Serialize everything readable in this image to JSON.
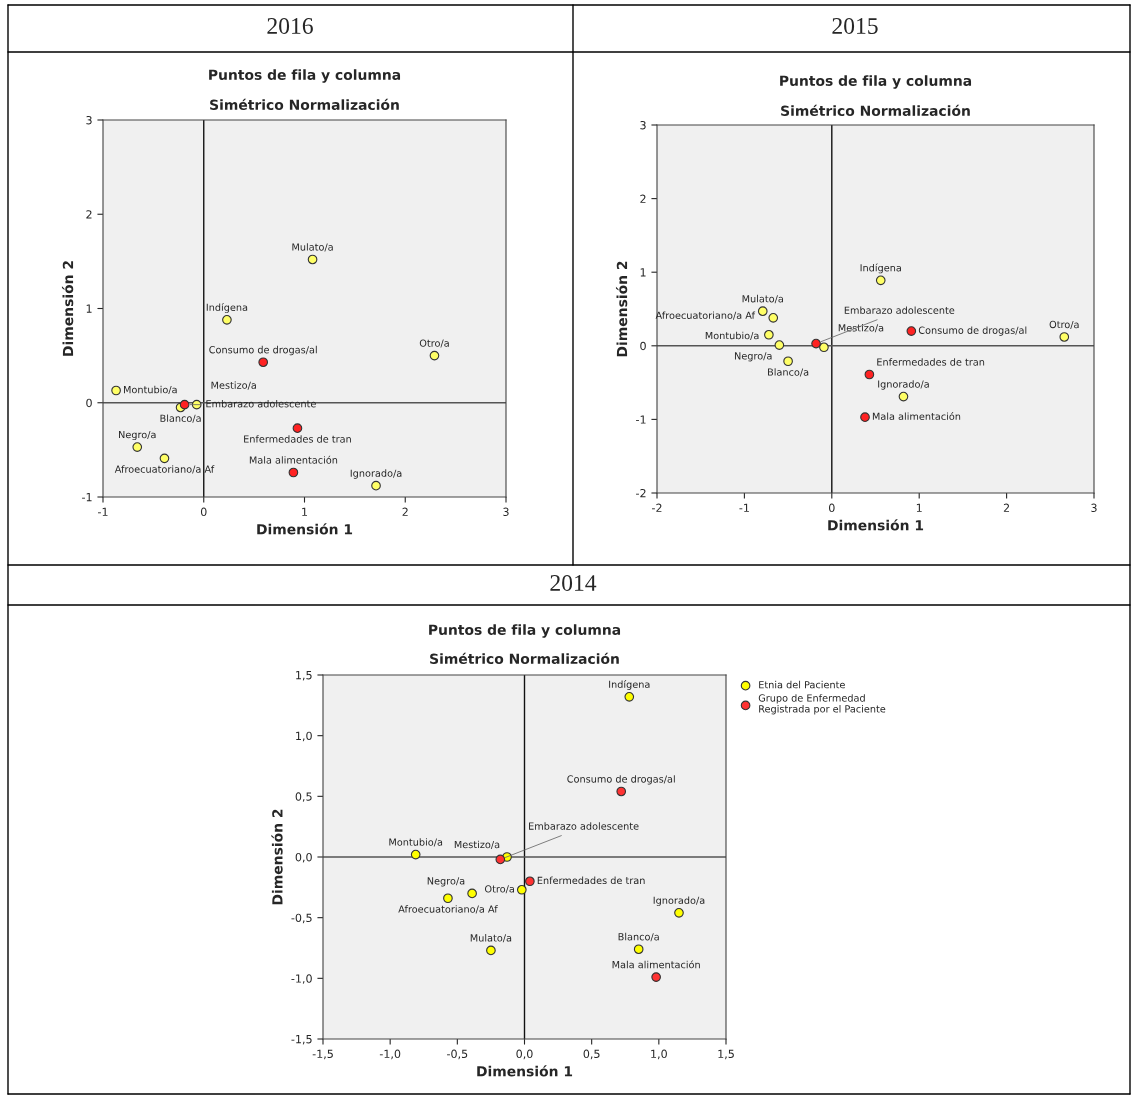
{
  "chart_data": [
    {
      "type": "scatter",
      "title": "2016",
      "subtitle": "Puntos de fila y columna",
      "xlabel": "Dimensión 1",
      "ylabel": "Dimensión 2",
      "xlim": [
        -1,
        3
      ],
      "ylim": [
        -1,
        3
      ],
      "xticks": [
        -1,
        0,
        1,
        2,
        3
      ],
      "yticks": [
        -1,
        0,
        1,
        2,
        3
      ],
      "grid": false,
      "legend": false,
      "marker": "circle",
      "ref_lines": [
        {
          "axis": "x",
          "value": 0
        },
        {
          "axis": "y",
          "value": 0
        }
      ],
      "series": [
        {
          "color": "#ffff66",
          "x": [
            1.08,
            0.23,
            2.29,
            -0.87,
            -0.23,
            -0.07,
            -0.66,
            -0.39,
            1.71
          ],
          "values": [
            1.52,
            0.88,
            0.5,
            0.13,
            -0.05,
            -0.02,
            -0.47,
            -0.59,
            -0.88
          ]
        },
        {
          "color": "#ff2222",
          "x": [
            0.59,
            -0.19,
            0.93,
            0.89
          ],
          "values": [
            0.43,
            -0.02,
            -0.27,
            -0.74
          ]
        }
      ],
      "annotations": [
        "Simétrico Normalización",
        {
          "text": "Mulato/a",
          "x": 1.08,
          "y": 1.52
        },
        {
          "text": "Indígena",
          "x": 0.23,
          "y": 0.88
        },
        {
          "text": "Otro/a",
          "x": 2.29,
          "y": 0.5
        },
        {
          "text": "Montubio/a",
          "x": -0.87,
          "y": 0.13
        },
        {
          "text": "Blanco/a",
          "x": -0.23,
          "y": -0.05
        },
        {
          "text": "Mestizo/a",
          "x": -0.07,
          "y": -0.02
        },
        {
          "text": "Negro/a",
          "x": -0.66,
          "y": -0.47
        },
        {
          "text": "Afroecuatoriano/a Af",
          "x": -0.39,
          "y": -0.59
        },
        {
          "text": "Ignorado/a",
          "x": 1.71,
          "y": -0.88
        },
        {
          "text": "Consumo de drogas/al",
          "x": 0.59,
          "y": 0.43
        },
        {
          "text": "Embarazo adolescente",
          "x": -0.19,
          "y": -0.02
        },
        {
          "text": "Enfermedades de tran",
          "x": 0.93,
          "y": -0.27
        },
        {
          "text": "Mala alimentación",
          "x": 0.89,
          "y": -0.74
        }
      ]
    },
    {
      "type": "scatter",
      "title": "2015",
      "subtitle": "Puntos de fila y columna",
      "xlabel": "Dimensión 1",
      "ylabel": "Dimensión 2",
      "xlim": [
        -2,
        3
      ],
      "ylim": [
        -2,
        3
      ],
      "xticks": [
        -2,
        -1,
        0,
        1,
        2,
        3
      ],
      "yticks": [
        -2,
        -1,
        0,
        1,
        2,
        3
      ],
      "grid": false,
      "legend": false,
      "marker": "circle",
      "ref_lines": [
        {
          "axis": "x",
          "value": 0
        },
        {
          "axis": "y",
          "value": 0
        }
      ],
      "series": [
        {
          "color": "#ffff66",
          "x": [
            0.56,
            -0.79,
            -0.67,
            -0.72,
            -0.6,
            -0.5,
            -0.09,
            2.66,
            0.82
          ],
          "values": [
            0.89,
            0.47,
            0.38,
            0.15,
            0.01,
            -0.21,
            -0.02,
            0.12,
            -0.69
          ]
        },
        {
          "color": "#ff2222",
          "x": [
            -0.18,
            0.91,
            0.43,
            0.38
          ],
          "values": [
            0.03,
            0.2,
            -0.39,
            -0.97
          ]
        }
      ],
      "annotations": [
        "Simétrico Normalización",
        {
          "text": "Indígena",
          "x": 0.56,
          "y": 0.89
        },
        {
          "text": "Mulato/a",
          "x": -0.79,
          "y": 0.47
        },
        {
          "text": "Montubio/a",
          "x": -0.67,
          "y": 0.38
        },
        {
          "text": "Afroecuatoriano/a Af",
          "x": -0.72,
          "y": 0.15
        },
        {
          "text": "Negro/a",
          "x": -0.6,
          "y": 0.01
        },
        {
          "text": "Blanco/a",
          "x": -0.5,
          "y": -0.21
        },
        {
          "text": "Mestizo/a",
          "x": -0.09,
          "y": -0.02
        },
        {
          "text": "Otro/a",
          "x": 2.66,
          "y": 0.12
        },
        {
          "text": "Ignorado/a",
          "x": 0.82,
          "y": -0.69
        },
        {
          "text": "Embarazo adolescente",
          "x": -0.18,
          "y": 0.03
        },
        {
          "text": "Consumo de drogas/al",
          "x": 0.91,
          "y": 0.2
        },
        {
          "text": "Enfermedades de tran",
          "x": 0.43,
          "y": -0.39
        },
        {
          "text": "Mala alimentación",
          "x": 0.38,
          "y": -0.97
        }
      ]
    },
    {
      "type": "scatter",
      "title": "2014",
      "subtitle": "Puntos de fila y columna",
      "xlabel": "Dimensión 1",
      "ylabel": "Dimensión 2",
      "xlim": [
        -1.5,
        1.5
      ],
      "ylim": [
        -1.5,
        1.5
      ],
      "xticks": [
        {
          "value": -1.5,
          "label": "-1,5"
        },
        {
          "value": -1.0,
          "label": "-1,0"
        },
        {
          "value": -0.5,
          "label": "-0,5"
        },
        {
          "value": 0.0,
          "label": "0,0"
        },
        {
          "value": 0.5,
          "label": "0,5"
        },
        {
          "value": 1.0,
          "label": "1,0"
        },
        {
          "value": 1.5,
          "label": "1,5"
        }
      ],
      "yticks": [
        {
          "value": -1.5,
          "label": "-1,5"
        },
        {
          "value": -1.0,
          "label": "-1,0"
        },
        {
          "value": -0.5,
          "label": "-0,5"
        },
        {
          "value": 0.0,
          "label": "0,0"
        },
        {
          "value": 0.5,
          "label": "0,5"
        },
        {
          "value": 1.0,
          "label": "1,0"
        },
        {
          "value": 1.5,
          "label": "1,5"
        }
      ],
      "grid": false,
      "legend": "top right",
      "marker": "circle",
      "ref_lines": [
        {
          "axis": "x",
          "value": 0
        },
        {
          "axis": "y",
          "value": 0
        }
      ],
      "series": [
        {
          "name": "Etnia del Paciente",
          "color": "#ffff00",
          "x": [
            0.78,
            -0.81,
            -0.13,
            -0.02,
            -0.39,
            -0.57,
            -0.25,
            1.15,
            0.85
          ],
          "values": [
            1.32,
            0.02,
            0.0,
            -0.27,
            -0.3,
            -0.34,
            -0.77,
            -0.46,
            -0.76
          ]
        },
        {
          "name": "Grupo de Enfermedad\nRegistrada por el Paciente",
          "color": "#ff3333",
          "x": [
            -0.18,
            0.04,
            0.72,
            0.98
          ],
          "values": [
            -0.02,
            -0.2,
            0.54,
            -0.99
          ]
        }
      ],
      "annotations": [
        "Simétrico Normalización",
        {
          "text": "Indígena",
          "x": 0.78,
          "y": 1.32
        },
        {
          "text": "Montubio/a",
          "x": -0.81,
          "y": 0.02
        },
        {
          "text": "Mestizo/a",
          "x": -0.13,
          "y": 0.0
        },
        {
          "text": "Otro/a",
          "x": -0.02,
          "y": -0.27
        },
        {
          "text": "Negro/a",
          "x": -0.39,
          "y": -0.3
        },
        {
          "text": "Afroecuatoriano/a Af",
          "x": -0.57,
          "y": -0.34
        },
        {
          "text": "Mulato/a",
          "x": -0.25,
          "y": -0.77
        },
        {
          "text": "Ignorado/a",
          "x": 1.15,
          "y": -0.46
        },
        {
          "text": "Blanco/a",
          "x": 0.85,
          "y": -0.76
        },
        {
          "text": "Embarazo adolescente",
          "x": -0.18,
          "y": -0.02
        },
        {
          "text": "Enfermedades de tran",
          "x": 0.04,
          "y": -0.2
        },
        {
          "text": "Consumo de drogas/al",
          "x": 0.72,
          "y": 0.54
        },
        {
          "text": "Mala alimentación",
          "x": 0.98,
          "y": -0.99
        }
      ]
    }
  ]
}
